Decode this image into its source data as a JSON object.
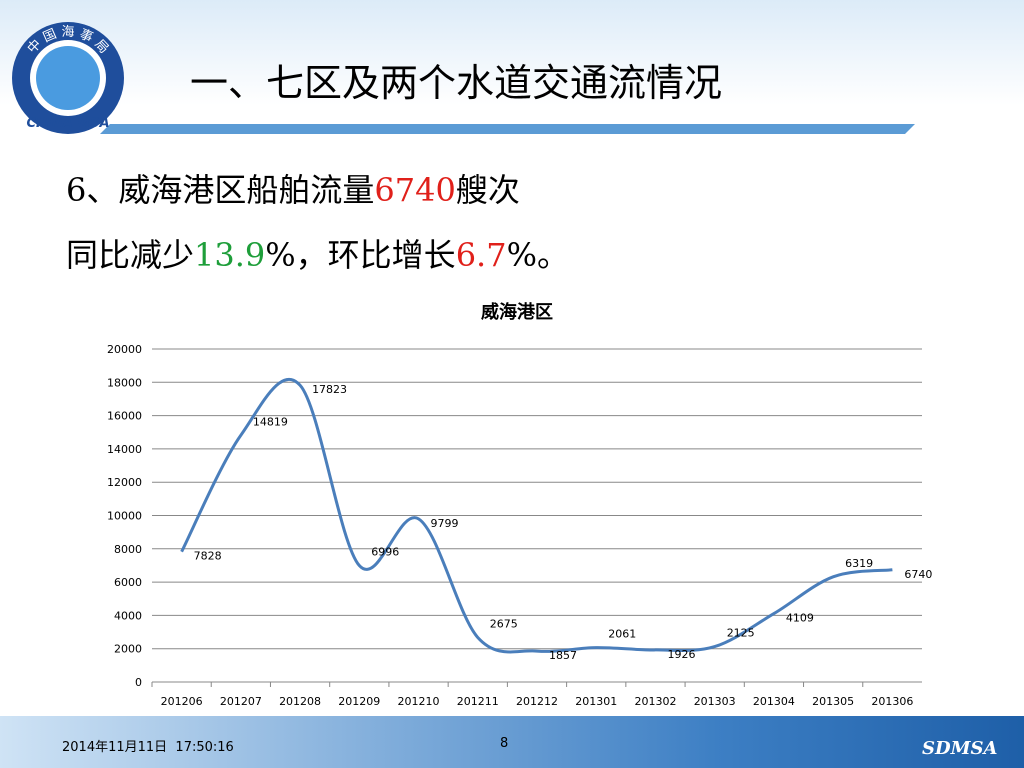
{
  "header": {
    "title": "一、七区及两个水道交通流情况",
    "logo_text": "中 国 海 事 局",
    "logo_en": "CHINA MSA"
  },
  "body": {
    "line1": [
      "6、威海港区船舶流量",
      "6740",
      "艘次"
    ],
    "line2": [
      "同比减少",
      "13.9",
      "%，环比增长",
      "6.7",
      "%。"
    ]
  },
  "chart_data": {
    "type": "line",
    "title": "威海港区",
    "categories": [
      "201206",
      "201207",
      "201208",
      "201209",
      "201210",
      "201211",
      "201212",
      "201301",
      "201302",
      "201303",
      "201304",
      "201305",
      "201306"
    ],
    "series": [
      {
        "name": "威海港区",
        "color": "#4a7ebb",
        "values": [
          7828,
          14819,
          17823,
          6996,
          9799,
          2675,
          1857,
          2061,
          1926,
          2125,
          4109,
          6319,
          6740
        ]
      }
    ],
    "ylim": [
      0,
      20000
    ],
    "yticks": [
      0,
      2000,
      4000,
      6000,
      8000,
      10000,
      12000,
      14000,
      16000,
      18000,
      20000
    ],
    "grid": true,
    "smooth": true,
    "data_labels": true
  },
  "footer": {
    "date": "2014年11月11日  17:50:16",
    "page": "8",
    "brand": "SDMSA"
  }
}
